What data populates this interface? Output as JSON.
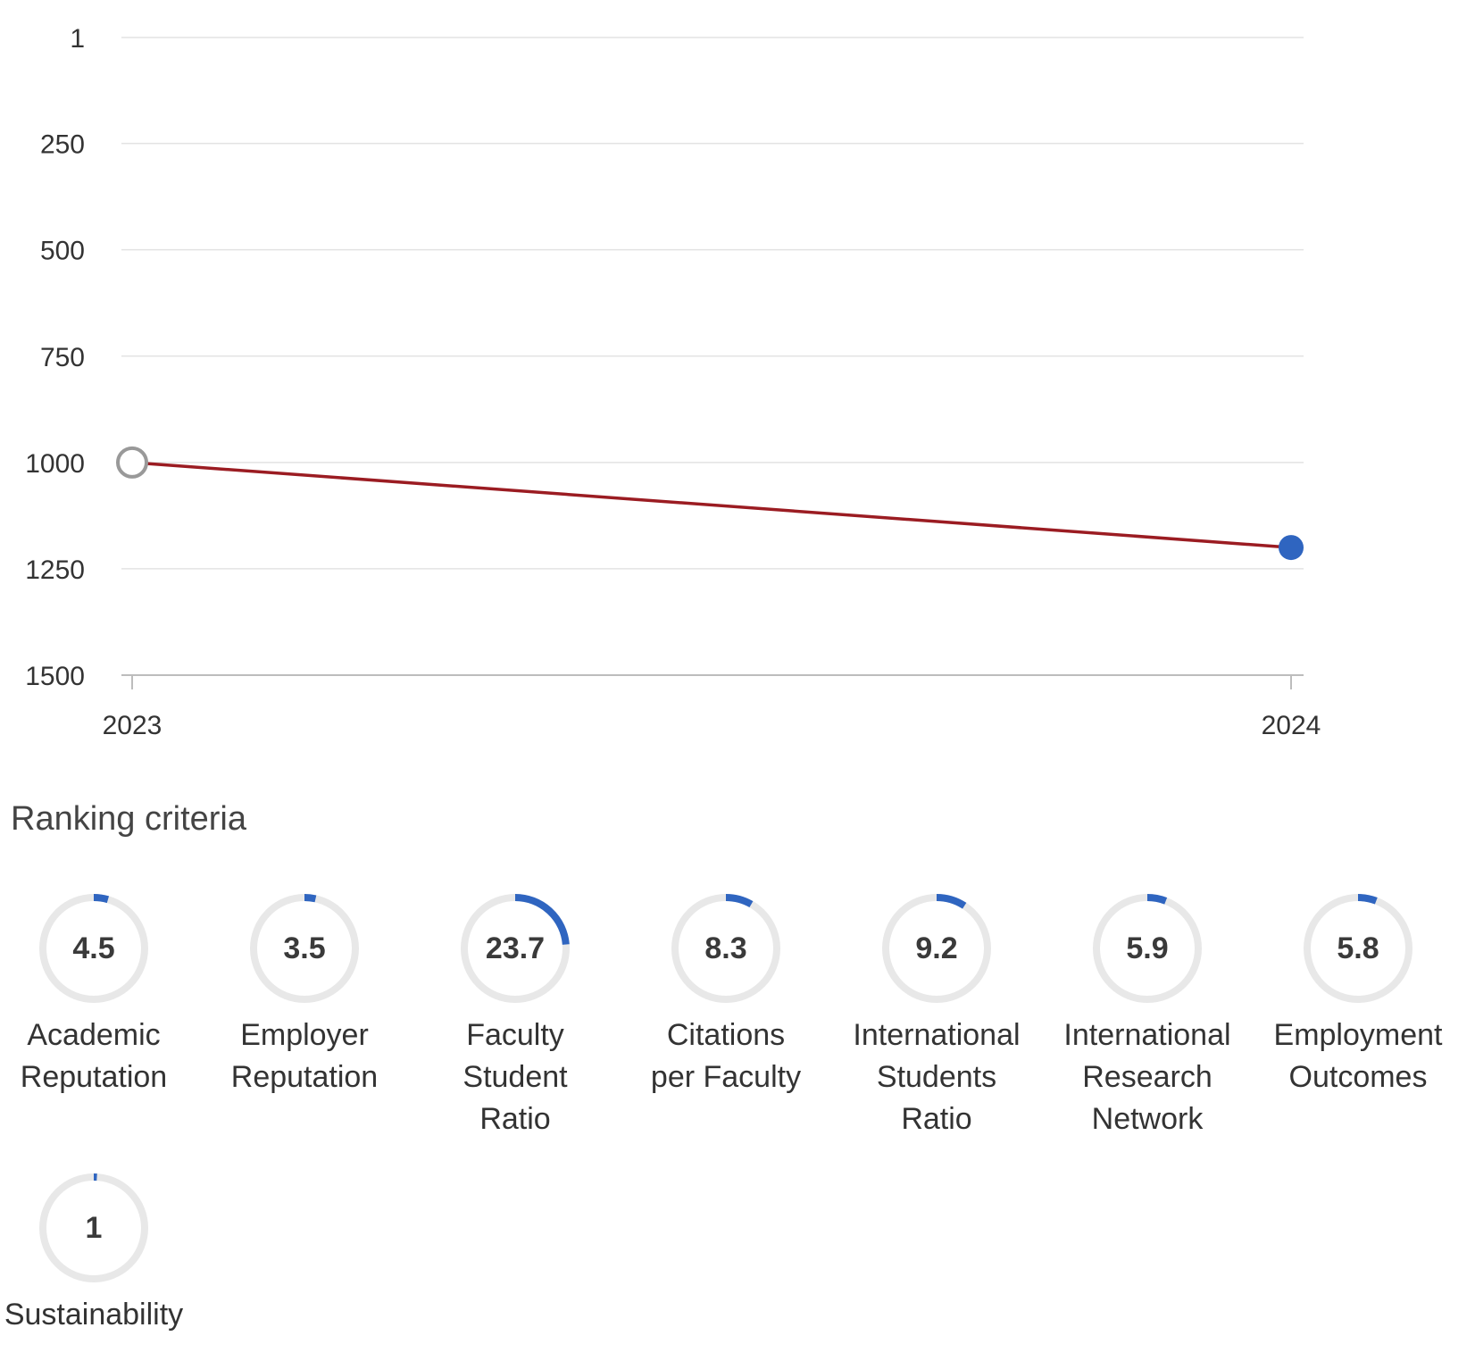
{
  "chart_data": {
    "type": "line",
    "x": [
      "2023",
      "2024"
    ],
    "series": [
      {
        "values": [
          1000,
          1200
        ],
        "color": "#9b1c22"
      }
    ],
    "points": [
      {
        "x": "2023",
        "style": "hollow",
        "color": "#999999"
      },
      {
        "x": "2024",
        "style": "filled",
        "color": "#2f65c0"
      }
    ],
    "yticks": [
      "1",
      "250",
      "500",
      "750",
      "1000",
      "1250",
      "1500"
    ],
    "ytick_values": [
      1,
      250,
      500,
      750,
      1000,
      1250,
      1500
    ],
    "ylim": [
      1,
      1500
    ],
    "y_inverted": true,
    "grid": true,
    "xlabel": "",
    "ylabel": ""
  },
  "criteria": {
    "title": "Ranking criteria",
    "items": [
      {
        "score": "4.5",
        "value": 4.5,
        "label": "Academic\nReputation"
      },
      {
        "score": "3.5",
        "value": 3.5,
        "label": "Employer\nReputation"
      },
      {
        "score": "23.7",
        "value": 23.7,
        "label": "Faculty\nStudent\nRatio"
      },
      {
        "score": "8.3",
        "value": 8.3,
        "label": "Citations\nper Faculty"
      },
      {
        "score": "9.2",
        "value": 9.2,
        "label": "International\nStudents\nRatio"
      },
      {
        "score": "5.9",
        "value": 5.9,
        "label": "International\nResearch\nNetwork"
      },
      {
        "score": "5.8",
        "value": 5.8,
        "label": "Employment\nOutcomes"
      },
      {
        "score": "1",
        "value": 1,
        "label": "Sustainability"
      }
    ],
    "ring_max": 100,
    "ring_color": "#2f65c0",
    "track_color": "#e8e8e8"
  }
}
